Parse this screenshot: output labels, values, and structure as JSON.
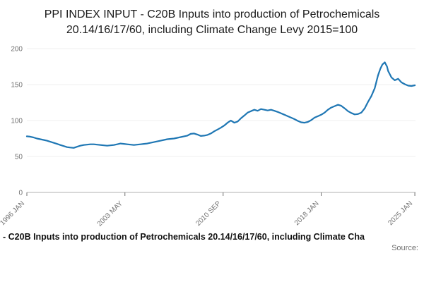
{
  "title": "PPI INDEX INPUT - C20B Inputs into production of Petrochemicals 20.14/16/17/60, including Climate Change Levy 2015=100",
  "footer": {
    "legend": "- C20B Inputs into production of Petrochemicals 20.14/16/17/60, including Climate Cha",
    "source": "Source:"
  },
  "colors": {
    "series": "#1f77b4",
    "axis": "#b0b0b0",
    "grid": "#efefef",
    "tick_text": "#707070"
  },
  "chart_data": {
    "type": "line",
    "title": "PPI INDEX INPUT - C20B Inputs into production of Petrochemicals 20.14/16/17/60, including Climate Change Levy 2015=100",
    "xlabel": "",
    "ylabel": "",
    "xlim": [
      1996.0,
      2025.05
    ],
    "ylim": [
      0,
      200
    ],
    "grid": true,
    "legend_position": "bottom",
    "y_ticks": [
      0,
      50,
      100,
      150,
      200
    ],
    "x_ticks": [
      {
        "value": 1996.0,
        "label": "1996 JAN"
      },
      {
        "value": 2003.33,
        "label": "2003 MAY"
      },
      {
        "value": 2010.67,
        "label": "2010 SEP"
      },
      {
        "value": 2018.0,
        "label": "2018 JAN"
      },
      {
        "value": 2025.0,
        "label": "2025 JAN"
      }
    ],
    "series": [
      {
        "name": "C20B Inputs into production of Petrochemicals 20.14/16/17/60, including Climate Change Levy 2015=100",
        "color": "#1f77b4",
        "x": [
          1996,
          1996.25,
          1996.5,
          1996.75,
          1997,
          1997.25,
          1997.5,
          1997.75,
          1998,
          1998.25,
          1998.5,
          1998.75,
          1999,
          1999.25,
          1999.5,
          1999.75,
          2000,
          2000.25,
          2000.5,
          2000.75,
          2001,
          2001.25,
          2001.5,
          2001.75,
          2002,
          2002.25,
          2002.5,
          2002.75,
          2003,
          2003.25,
          2003.5,
          2003.75,
          2004,
          2004.25,
          2004.5,
          2004.75,
          2005,
          2005.25,
          2005.5,
          2005.75,
          2006,
          2006.25,
          2006.5,
          2006.75,
          2007,
          2007.25,
          2007.5,
          2007.75,
          2008,
          2008.25,
          2008.5,
          2008.75,
          2009,
          2009.25,
          2009.5,
          2009.75,
          2010,
          2010.25,
          2010.5,
          2010.75,
          2011,
          2011.25,
          2011.5,
          2011.75,
          2012,
          2012.25,
          2012.5,
          2012.75,
          2013,
          2013.25,
          2013.5,
          2013.75,
          2014,
          2014.25,
          2014.5,
          2014.75,
          2015,
          2015.25,
          2015.5,
          2015.75,
          2016,
          2016.25,
          2016.5,
          2016.75,
          2017,
          2017.25,
          2017.5,
          2017.75,
          2018,
          2018.25,
          2018.5,
          2018.75,
          2019,
          2019.25,
          2019.5,
          2019.75,
          2020,
          2020.25,
          2020.5,
          2020.75,
          2021,
          2021.25,
          2021.5,
          2021.75,
          2022,
          2022.25,
          2022.42,
          2022.58,
          2022.75,
          2022.92,
          2023,
          2023.25,
          2023.5,
          2023.75,
          2024,
          2024.25,
          2024.5,
          2024.75,
          2025
        ],
        "y": [
          78,
          77.5,
          76.5,
          75,
          74,
          73,
          72,
          70.5,
          69,
          67.5,
          66,
          64.5,
          63,
          62.5,
          62,
          63.5,
          65,
          66,
          66.5,
          67,
          67,
          66.5,
          66,
          65.5,
          65,
          65.5,
          66,
          67,
          68,
          67.5,
          67,
          66.5,
          66,
          66.5,
          67,
          67.5,
          68,
          69,
          70,
          71,
          72,
          73,
          74,
          74.5,
          75,
          76,
          77,
          78,
          79,
          81.5,
          82,
          80.5,
          78.5,
          79,
          80,
          82,
          85,
          87.5,
          90,
          93,
          97,
          100,
          97,
          98.5,
          103,
          107,
          111,
          113,
          115,
          113.5,
          116,
          115,
          114,
          115,
          113.5,
          112,
          110,
          108,
          106,
          104,
          102,
          99.5,
          97.5,
          97,
          98,
          100.5,
          104,
          106,
          108,
          111,
          115,
          118,
          120,
          122,
          120.5,
          117,
          113,
          110.5,
          108.5,
          109,
          111,
          117,
          126,
          134,
          145,
          163,
          172,
          178,
          181,
          175,
          169,
          160,
          156,
          158,
          153,
          150.5,
          148.5,
          148,
          149
        ]
      }
    ]
  }
}
